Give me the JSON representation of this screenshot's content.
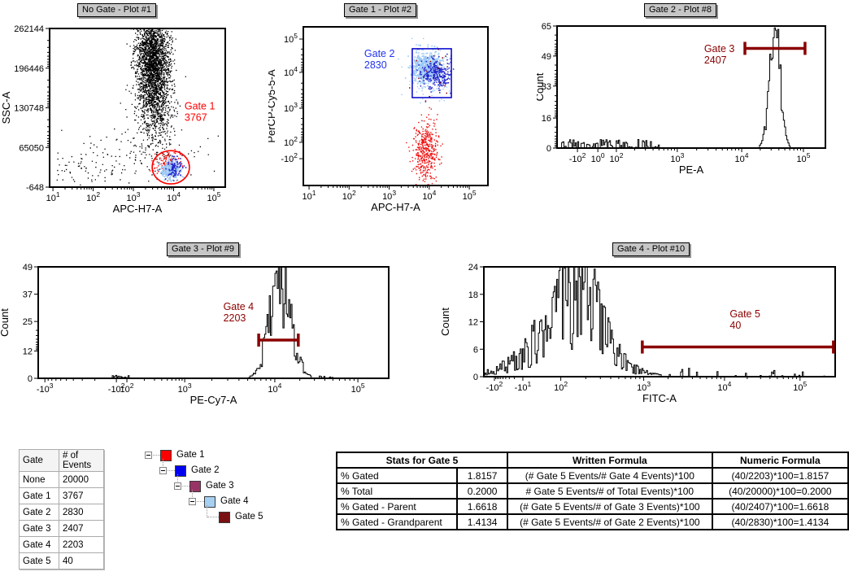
{
  "chart_data": [
    {
      "id": "plot1",
      "type": "scatter",
      "title": "No Gate - Plot #1",
      "xlabel": "APC-H7-A",
      "ylabel": "SSC-A",
      "x_scale": "log",
      "y_scale": "linear",
      "x_ticks": [
        {
          "t": "10",
          "e": "1",
          "f": 0.019
        },
        {
          "t": "10",
          "e": "2",
          "f": 0.248
        },
        {
          "t": "10",
          "e": "3",
          "f": 0.477
        },
        {
          "t": "10",
          "e": "4",
          "f": 0.706
        },
        {
          "t": "10",
          "e": "5",
          "f": 0.935
        }
      ],
      "y_ticks": [
        {
          "t": "262144",
          "f": 0
        },
        {
          "t": "196446",
          "f": 0.25
        },
        {
          "t": "130748",
          "f": 0.5
        },
        {
          "t": "65050",
          "f": 0.75
        },
        {
          "t": "-648",
          "f": 1
        }
      ],
      "clusters": [
        {
          "name": "ssc-main-cloud",
          "color": "#000000",
          "n": 2400,
          "cx": 0.585,
          "cy": 0.2,
          "sx": 0.047,
          "sy": 0.155,
          "size": 1.3
        },
        {
          "name": "ssc-tail",
          "color": "#000000",
          "n": 520,
          "cx": 0.605,
          "cy": 0.52,
          "sx": 0.052,
          "sy": 0.13,
          "size": 1.3
        },
        {
          "name": "sparse-mid",
          "color": "#000000",
          "n": 120,
          "cx": 0.52,
          "cy": 0.78,
          "sx": 0.17,
          "sy": 0.1,
          "size": 1.3
        },
        {
          "name": "debris-left",
          "color": "#000000",
          "n": 60,
          "cx": 0.22,
          "cy": 0.88,
          "sx": 0.12,
          "sy": 0.05,
          "size": 1.3
        },
        {
          "name": "gate1-events-red",
          "color": "#EE1111",
          "n": 120,
          "cx": 0.662,
          "cy": 0.845,
          "sx": 0.038,
          "sy": 0.038,
          "size": 1.4
        },
        {
          "name": "gate2-events-lightblue",
          "color": "#9CC8F5",
          "n": 300,
          "cx": 0.685,
          "cy": 0.885,
          "sx": 0.026,
          "sy": 0.024,
          "size": 1.8
        },
        {
          "name": "gate2-events-darkblue",
          "color": "#2222CC",
          "n": 80,
          "cx": 0.715,
          "cy": 0.873,
          "sx": 0.022,
          "sy": 0.03,
          "size": 1.6
        }
      ],
      "gates": [
        {
          "shape": "ellipse",
          "name": "Gate 1",
          "events": "3767",
          "cx": 0.69,
          "cy": 0.875,
          "rx": 0.106,
          "ry": 0.105,
          "color": "#FF0000",
          "label": {
            "lines": [
              "Gate 1",
              "3767"
            ],
            "x": 0.768,
            "y": 0.51,
            "color": "#FF0000"
          }
        }
      ]
    },
    {
      "id": "plot2",
      "type": "scatter",
      "title": "Gate 1 - Plot #2",
      "xlabel": "APC-H7-A",
      "ylabel": "PerCP-Cy5-5-A",
      "x_scale": "log",
      "y_scale": "biexponential",
      "x_ticks": [
        {
          "t": "10",
          "e": "1",
          "f": 0.031
        },
        {
          "t": "10",
          "e": "2",
          "f": 0.248
        },
        {
          "t": "10",
          "e": "3",
          "f": 0.465
        },
        {
          "t": "10",
          "e": "4",
          "f": 0.682
        },
        {
          "t": "10",
          "e": "5",
          "f": 0.899
        }
      ],
      "y_ticks": [
        {
          "t": "10",
          "e": "5",
          "f": 0.077
        },
        {
          "t": "10",
          "e": "4",
          "f": 0.287
        },
        {
          "t": "10",
          "e": "3",
          "f": 0.513
        },
        {
          "t": "10",
          "e": "2",
          "f": 0.728
        },
        {
          "t": "-10",
          "e": "2",
          "f": 0.831
        }
      ],
      "clusters": [
        {
          "name": "gate2-lightblue",
          "color": "#9CC8F5",
          "n": 650,
          "cx": 0.665,
          "cy": 0.253,
          "sx": 0.042,
          "sy": 0.048,
          "size": 1.6
        },
        {
          "name": "lightblue-halo",
          "color": "#9CC8F5",
          "n": 110,
          "cx": 0.67,
          "cy": 0.29,
          "sx": 0.065,
          "sy": 0.09,
          "size": 1.4
        },
        {
          "name": "gate3-darkblue",
          "color": "#2222CC",
          "n": 260,
          "cx": 0.715,
          "cy": 0.3,
          "sx": 0.04,
          "sy": 0.05,
          "size": 1.5
        },
        {
          "name": "darkred-specks",
          "color": "#8B0000",
          "n": 16,
          "cx": 0.7,
          "cy": 0.26,
          "sx": 0.07,
          "sy": 0.07,
          "size": 1.5
        },
        {
          "name": "non-gate2-red",
          "color": "#EE1111",
          "n": 420,
          "cx": 0.662,
          "cy": 0.79,
          "sx": 0.032,
          "sy": 0.095,
          "size": 1.4,
          "outliers": [
            [
              0.66,
              0.462
            ],
            [
              0.676,
              0.55
            ],
            [
              0.69,
              0.515
            ]
          ]
        }
      ],
      "gates": [
        {
          "shape": "rect",
          "name": "Gate 2",
          "events": "2830",
          "x1": 0.59,
          "x2": 0.802,
          "y1": 0.138,
          "y2": 0.446,
          "color": "#0000CC",
          "label": {
            "lines": [
              "Gate 2",
              "2830"
            ],
            "x": 0.33,
            "y": 0.19,
            "color": "#2233EE"
          }
        }
      ]
    },
    {
      "id": "plot3",
      "type": "histogram",
      "title": "Gate 2 - Plot #8",
      "xlabel": "PE-A",
      "ylabel": "Count",
      "ymax": 65,
      "x_ticks": [
        {
          "t": "-10",
          "e": "2",
          "f": 0.076
        },
        {
          "t": "10",
          "e": "0",
          "f": 0.152
        },
        {
          "t": "10",
          "e": "2",
          "f": 0.221
        },
        {
          "t": "10",
          "e": "3",
          "f": 0.448
        },
        {
          "t": "10",
          "e": "4",
          "f": 0.688
        },
        {
          "t": "10",
          "e": "5",
          "f": 0.918
        }
      ],
      "y_ticks": [
        {
          "t": "65",
          "f": 0
        },
        {
          "t": "49",
          "f": 0.246
        },
        {
          "t": "33",
          "f": 0.492
        },
        {
          "t": "16",
          "f": 0.754
        },
        {
          "t": "0",
          "f": 1
        }
      ],
      "hist": {
        "peaks": [
          {
            "center": 0.812,
            "sigma": 0.02,
            "height": 1.0
          }
        ],
        "noise": 0.35,
        "baseline": [
          {
            "from": 0.015,
            "to": 0.38,
            "p": 0.6,
            "max": 0.07
          }
        ]
      },
      "gates": [
        {
          "shape": "interval",
          "name": "Gate 3",
          "events": "2407",
          "x1": 0.7,
          "x2": 0.924,
          "y": 0.183,
          "color": "#8B0000",
          "label": {
            "lines": [
              "Gate 3",
              "2407"
            ],
            "x": 0.548,
            "y": 0.213,
            "color": "#8B0000"
          }
        }
      ]
    },
    {
      "id": "plot4",
      "type": "histogram",
      "title": "Gate 3 - Plot #9",
      "xlabel": "PE-Cy7-A",
      "ylabel": "Count",
      "ymax": 49,
      "x_ticks": [
        {
          "t": "-10",
          "e": "3",
          "f": 0.019
        },
        {
          "t": "-10",
          "e": "2",
          "f": 0.223
        },
        {
          "t": "10",
          "e": "2",
          "f": 0.253
        },
        {
          "t": "10",
          "e": "3",
          "f": 0.418
        },
        {
          "t": "10",
          "e": "4",
          "f": 0.675
        },
        {
          "t": "10",
          "e": "5",
          "f": 0.912
        }
      ],
      "y_ticks": [
        {
          "t": "49",
          "f": 0
        },
        {
          "t": "37",
          "f": 0.245
        },
        {
          "t": "25",
          "f": 0.49
        },
        {
          "t": "12",
          "f": 0.755
        },
        {
          "t": "0",
          "f": 1
        }
      ],
      "hist": {
        "peaks": [
          {
            "center": 0.691,
            "sigma": 0.031,
            "height": 0.96
          }
        ],
        "noise": 0.55,
        "baseline": [
          {
            "from": 0.212,
            "to": 0.262,
            "p": 0.9,
            "max": 0.03
          },
          {
            "from": 0.79,
            "to": 0.86,
            "p": 0.12,
            "max": 0.025
          }
        ]
      },
      "gates": [
        {
          "shape": "interval",
          "name": "Gate 4",
          "events": "2203",
          "x1": 0.629,
          "x2": 0.742,
          "y": 0.657,
          "color": "#8B0000",
          "label": {
            "lines": [
              "Gate 4",
              "2203"
            ],
            "x": 0.528,
            "y": 0.387,
            "color": "#8B0000"
          }
        }
      ]
    },
    {
      "id": "plot5",
      "type": "histogram",
      "title": "Gate 4 - Plot #10",
      "xlabel": "FITC-A",
      "ylabel": "Count",
      "ymax": 24,
      "x_ticks": [
        {
          "t": "-10",
          "e": "2",
          "f": 0.03
        },
        {
          "t": "-10",
          "e": "1",
          "f": 0.111
        },
        {
          "t": "10",
          "e": "2",
          "f": 0.219
        },
        {
          "t": "10",
          "e": "3",
          "f": 0.455
        },
        {
          "t": "10",
          "e": "4",
          "f": 0.685
        },
        {
          "t": "10",
          "e": "5",
          "f": 0.9
        }
      ],
      "y_ticks": [
        {
          "t": "24",
          "f": 0
        },
        {
          "t": "18",
          "f": 0.25
        },
        {
          "t": "12",
          "f": 0.5
        },
        {
          "t": "6",
          "f": 0.75
        },
        {
          "t": "0",
          "f": 1
        }
      ],
      "hist": {
        "peaks": [
          {
            "center": 0.235,
            "sigma": 0.1,
            "height": 0.55
          },
          {
            "center": 0.27,
            "sigma": 0.05,
            "height": 0.45
          }
        ],
        "noise": 0.75,
        "baseline": [
          {
            "from": 0.4,
            "to": 0.97,
            "p": 0.13,
            "max": 0.08
          }
        ]
      },
      "gates": [
        {
          "shape": "interval",
          "name": "Gate 5",
          "events": "40",
          "x1": 0.451,
          "x2": 0.995,
          "y": 0.73,
          "color": "#8B0000",
          "label": {
            "lines": [
              "Gate 5",
              "40"
            ],
            "x": 0.7,
            "y": 0.46,
            "color": "#8B0000"
          }
        }
      ]
    }
  ],
  "events_table": {
    "headers": [
      "Gate",
      "# of Events"
    ],
    "rows": [
      [
        "None",
        "20000"
      ],
      [
        "Gate 1",
        "3767"
      ],
      [
        "Gate 2",
        "2830"
      ],
      [
        "Gate 3",
        "2407"
      ],
      [
        "Gate 4",
        "2203"
      ],
      [
        "Gate 5",
        "40"
      ]
    ]
  },
  "gate_tree": {
    "items": [
      {
        "label": "Gate 1",
        "color": "#FF0000",
        "has_children": true
      },
      {
        "label": "Gate 2",
        "color": "#0000F0",
        "has_children": true
      },
      {
        "label": "Gate 3",
        "color": "#993366",
        "has_children": true
      },
      {
        "label": "Gate 4",
        "color": "#A6D0F2",
        "has_children": true
      },
      {
        "label": "Gate 5",
        "color": "#791012",
        "has_children": false
      }
    ]
  },
  "stats_table": {
    "col_headers": [
      "Stats for Gate 5",
      "Written Formula",
      "Numeric Formula"
    ],
    "rows": [
      {
        "label": "% Gated",
        "value": "1.8157",
        "written": "(# Gate 5 Events/# Gate 4 Events)*100",
        "numeric": "(40/2203)*100=1.8157"
      },
      {
        "label": "% Total",
        "value": "0.2000",
        "written": "# Gate 5 Events/# of Total Events)*100",
        "numeric": "(40/20000)*100=0.2000"
      },
      {
        "label": "% Gated - Parent",
        "value": "1.6618",
        "written": "(# Gate 5 Events/# of Gate 3 Events)*100",
        "numeric": "(40/2407)*100=1.6618"
      },
      {
        "label": "% Gated - Grandparent",
        "value": "1.4134",
        "written": "(# Gate 5 Events/# of Gate 2 Events)*100",
        "numeric": "(40/2830)*100=1.4134"
      }
    ]
  }
}
